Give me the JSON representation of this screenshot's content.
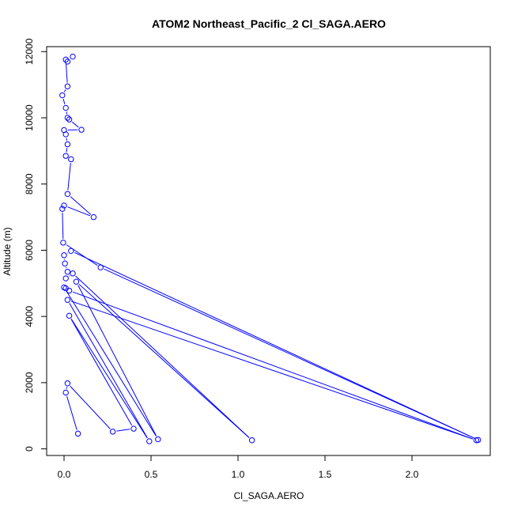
{
  "chart_data": {
    "type": "line",
    "title": "ATOM2 Northeast_Pacific_2 Cl_SAGA.AERO",
    "xlabel": "Cl_SAGA.AERO",
    "ylabel": "Altitude (m)",
    "xlim": [
      -0.1,
      2.45
    ],
    "ylim": [
      -200,
      12150
    ],
    "x_ticks": [
      0.0,
      0.5,
      1.0,
      1.5,
      2.0
    ],
    "x_tick_labels": [
      "0.0",
      "0.5",
      "1.0",
      "1.5",
      "2.0"
    ],
    "y_ticks": [
      0,
      2000,
      4000,
      6000,
      8000,
      10000,
      12000
    ],
    "y_tick_labels": [
      "0",
      "2000",
      "4000",
      "6000",
      "8000",
      "10000",
      "12000"
    ],
    "grid": false,
    "series": [
      {
        "color": "#0000ff",
        "marker": "open-circle",
        "points": [
          {
            "x": 0.05,
            "y": 11850
          },
          {
            "x": 0.02,
            "y": 11700
          },
          {
            "x": 0.01,
            "y": 11760
          },
          {
            "x": 0.02,
            "y": 10950
          },
          {
            "x": -0.01,
            "y": 10680
          },
          {
            "x": 0.01,
            "y": 10300
          },
          {
            "x": 0.02,
            "y": 10000
          },
          {
            "x": 0.03,
            "y": 9950
          },
          {
            "x": 0.1,
            "y": 9640
          },
          {
            "x": 0.0,
            "y": 9630
          },
          {
            "x": 0.01,
            "y": 9500
          },
          {
            "x": 0.02,
            "y": 9200
          },
          {
            "x": 0.01,
            "y": 8850
          },
          {
            "x": 0.04,
            "y": 8750
          },
          {
            "x": 0.02,
            "y": 7700
          },
          {
            "x": 0.17,
            "y": 7000
          },
          {
            "x": 0.0,
            "y": 7350
          },
          {
            "x": -0.01,
            "y": 7250
          },
          {
            "x": -0.005,
            "y": 6230
          },
          {
            "x": 0.21,
            "y": 5480
          },
          {
            "x": 2.38,
            "y": 270
          },
          {
            "x": 0.04,
            "y": 5980
          },
          {
            "x": 0.0,
            "y": 5850
          },
          {
            "x": 0.005,
            "y": 5600
          },
          {
            "x": 0.02,
            "y": 5350
          },
          {
            "x": 0.01,
            "y": 5150
          },
          {
            "x": 0.05,
            "y": 5300
          },
          {
            "x": 1.08,
            "y": 260
          },
          {
            "x": 0.07,
            "y": 5050
          },
          {
            "x": 0.54,
            "y": 290
          },
          {
            "x": 0.0,
            "y": 4880
          },
          {
            "x": 0.01,
            "y": 4850
          },
          {
            "x": 0.03,
            "y": 4780
          },
          {
            "x": 2.37,
            "y": 260
          },
          {
            "x": 0.02,
            "y": 4500
          },
          {
            "x": 0.49,
            "y": 230
          },
          {
            "x": 0.03,
            "y": 4020
          },
          {
            "x": 0.4,
            "y": 610
          },
          {
            "x": 0.28,
            "y": 520
          },
          {
            "x": 0.02,
            "y": 1980
          },
          {
            "x": 0.01,
            "y": 1700
          },
          {
            "x": 0.08,
            "y": 460
          }
        ]
      }
    ]
  }
}
